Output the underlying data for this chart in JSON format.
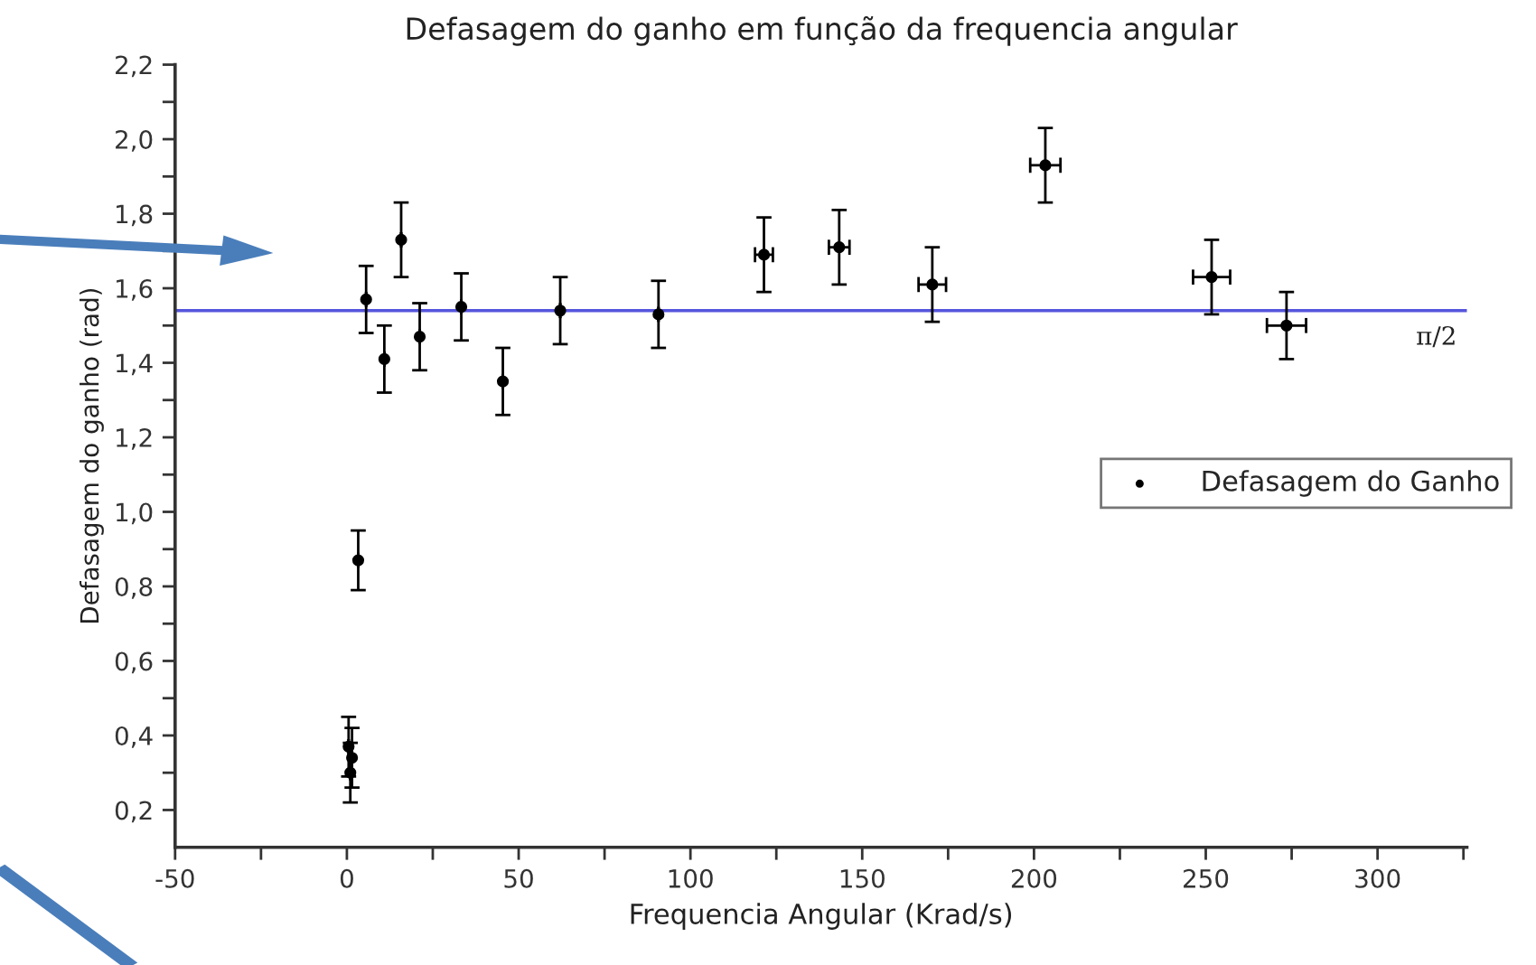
{
  "chart_data": {
    "type": "scatter",
    "title": "Defasagem do ganho em função da frequencia angular",
    "xlabel": "Frequencia Angular (Krad/s)",
    "ylabel": "Defasagem do ganho (rad)",
    "series": [
      {
        "name": "Defasagem do Ganho",
        "color": "#000000",
        "x": [
          0.5,
          1.0,
          1.5,
          3.3,
          5.6,
          10.9,
          15.8,
          21.2,
          33.3,
          45.4,
          62.1,
          90.7,
          121.4,
          143.3,
          170.4,
          203.3,
          251.7,
          273.5
        ],
        "values": [
          0.37,
          0.3,
          0.34,
          0.87,
          1.57,
          1.41,
          1.73,
          1.47,
          1.55,
          1.35,
          1.54,
          1.53,
          1.69,
          1.71,
          1.61,
          1.93,
          1.63,
          1.5
        ],
        "errors": [
          0.08,
          0.08,
          0.08,
          0.08,
          0.09,
          0.09,
          0.1,
          0.09,
          0.09,
          0.09,
          0.09,
          0.09,
          0.1,
          0.1,
          0.1,
          0.1,
          0.1,
          0.09
        ],
        "xerrors": [
          null,
          null,
          null,
          null,
          null,
          null,
          null,
          null,
          null,
          null,
          null,
          null,
          2.6,
          3,
          4,
          4.4,
          5.4,
          5.7
        ]
      }
    ],
    "ref_lines": [
      {
        "axis": "y",
        "value": 1.54,
        "label": "π/2",
        "color": "#5555dd",
        "line_style": "solid"
      }
    ],
    "xlim": [
      -50,
      326
    ],
    "ylim": [
      0.1,
      2.2
    ],
    "xticks": [
      -50,
      {
        "value": -25,
        "label": null
      },
      0,
      {
        "value": 25,
        "label": null
      },
      50,
      {
        "value": 75,
        "label": null
      },
      100,
      {
        "value": 125,
        "label": null
      },
      150,
      {
        "value": 175,
        "label": null
      },
      200,
      {
        "value": 225,
        "label": null
      },
      250,
      {
        "value": 275,
        "label": null
      },
      300,
      {
        "value": 325,
        "label": null
      }
    ],
    "yticks": [
      {
        "value": 0.2,
        "label": "0,2"
      },
      {
        "value": 0.3,
        "label": null
      },
      {
        "value": 0.4,
        "label": "0,4"
      },
      {
        "value": 0.5,
        "label": null
      },
      {
        "value": 0.6,
        "label": "0,6"
      },
      {
        "value": 0.7,
        "label": null
      },
      {
        "value": 0.8,
        "label": "0,8"
      },
      {
        "value": 0.9,
        "label": null
      },
      {
        "value": 1.0,
        "label": "1,0"
      },
      {
        "value": 1.1,
        "label": null
      },
      {
        "value": 1.2,
        "label": "1,2"
      },
      {
        "value": 1.3,
        "label": null
      },
      {
        "value": 1.4,
        "label": "1,4"
      },
      {
        "value": 1.5,
        "label": null
      },
      {
        "value": 1.6,
        "label": "1,6"
      },
      {
        "value": 1.7,
        "label": null
      },
      {
        "value": 1.8,
        "label": "1,8"
      },
      {
        "value": 1.9,
        "label": null
      },
      {
        "value": 2.0,
        "label": "2,0"
      },
      {
        "value": 2.1,
        "label": null
      },
      {
        "value": 2.2,
        "label": "2,2"
      }
    ],
    "marker": "circle",
    "legend": "right",
    "grid": false
  }
}
